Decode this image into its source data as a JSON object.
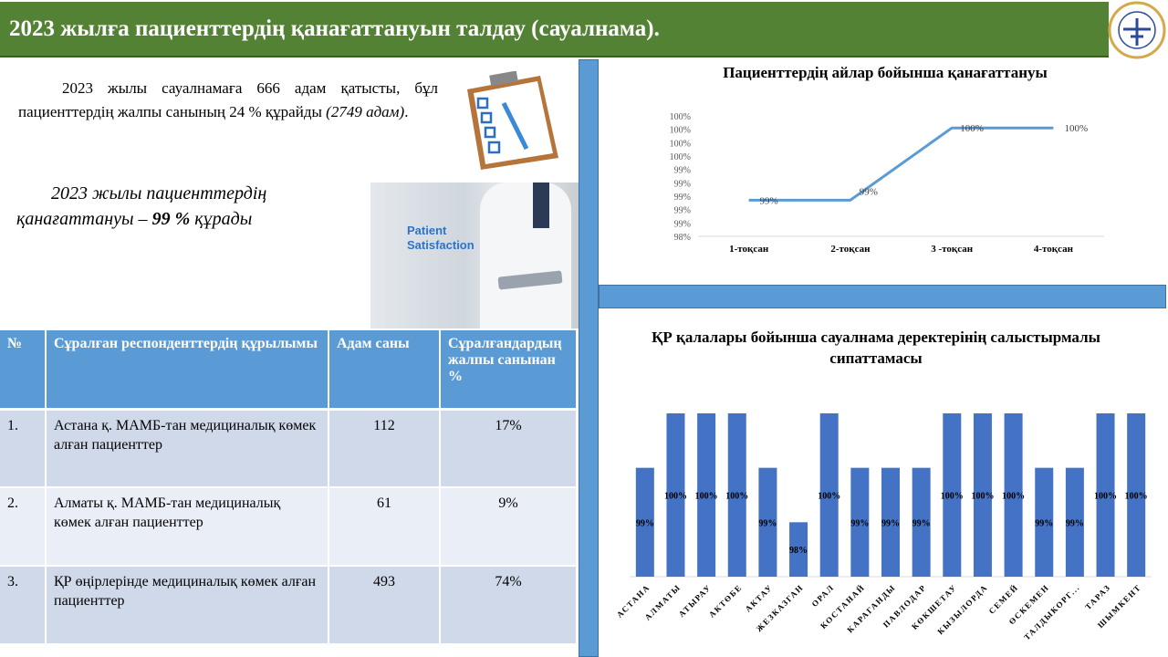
{
  "header": {
    "title": "2023 жылға пациенттердің қанағаттануын талдау (сауалнама).",
    "logo_text": "EMERGENCY MEDICAL CARE OF KAZAKHSTAN"
  },
  "intro": {
    "text": "2023 жылы сауалнамаға 666 адам қатысты, бұл пациенттердің жалпы санының 24 % құрайды ",
    "italic": "(2749 адам)",
    "end": "."
  },
  "satisfaction": {
    "prefix": "2023 жылы пациенттердің қанағаттануы – ",
    "value": "99 %",
    "suffix": " құрады"
  },
  "photo": {
    "label_line1": "Patient",
    "label_line2": "Satisfaction"
  },
  "table": {
    "headers": [
      "№",
      "Сұралған респонденттердің құрылымы",
      "Адам саны",
      "Сұралғандардың жалпы санынан %"
    ],
    "rows": [
      [
        "1.",
        "Астана қ. МАМБ-тан медициналық көмек алған пациенттер",
        "112",
        "17%"
      ],
      [
        "2.",
        "Алматы қ. МАМБ-тан медициналық көмек алған пациенттер",
        "61",
        "9%"
      ],
      [
        "3.",
        "ҚР өңірлерінде медициналық көмек алған пациенттер",
        "493",
        "74%"
      ]
    ]
  },
  "chart_data": [
    {
      "type": "line",
      "title": "Пациенттердің айлар бойынша қанағаттануы",
      "categories": [
        "1-тоқсан",
        "2-тоқсан",
        "3 -тоқсан",
        "4-тоқсан"
      ],
      "values": [
        98.6,
        98.6,
        99.8,
        99.8
      ],
      "data_labels": [
        "99%",
        "99%",
        "100%",
        "100%"
      ],
      "ylim": [
        98,
        100
      ],
      "yticks": [
        "98%",
        "99%",
        "99%",
        "99%",
        "99%",
        "99%",
        "100%",
        "100%",
        "100%",
        "100%"
      ],
      "color": "#5b9bd5",
      "grid": false
    },
    {
      "type": "bar",
      "title": "ҚР қалалары бойынша сауалнама деректерінің салыстырмалы сипаттамасы",
      "categories": [
        "АСТАНА",
        "АЛМАТЫ",
        "АТЫРАУ",
        "АКТӨБЕ",
        "АКТАУ",
        "ЖЕЗКАЗГАН",
        "ОРАЛ",
        "КОСТАНАЙ",
        "КАРАГАНДЫ",
        "ПАВЛОДАР",
        "КӨКШЕТАУ",
        "КЫЗЫЛОРДА",
        "СЕМЕЙ",
        "ӨСКЕМЕН",
        "ТАЛДЫКОРГ...",
        "ТАРАЗ",
        "ШЫМКЕНТ"
      ],
      "values": [
        99,
        100,
        100,
        100,
        99,
        98,
        100,
        99,
        99,
        99,
        100,
        100,
        100,
        99,
        99,
        100,
        100
      ],
      "data_labels": [
        "99%",
        "100%",
        "100%",
        "100%",
        "99%",
        "98%",
        "100%",
        "99%",
        "99%",
        "99%",
        "100%",
        "100%",
        "100%",
        "99%",
        "99%",
        "100%",
        "100%"
      ],
      "ylim": [
        97,
        100
      ],
      "color": "#4472c4",
      "grid": false
    }
  ]
}
